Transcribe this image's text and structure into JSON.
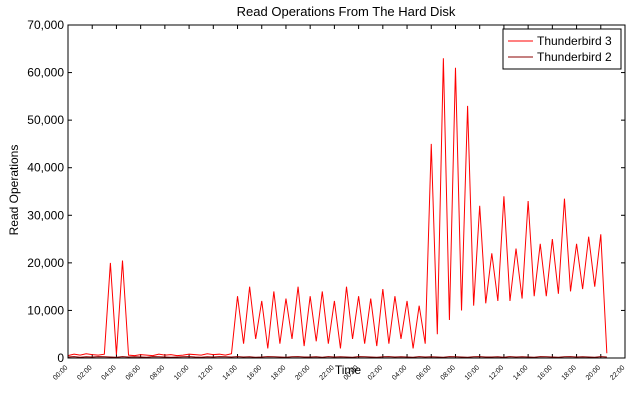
{
  "chart_data": {
    "type": "line",
    "title": "Read Operations From The Hard Disk",
    "x_label": "Time",
    "y_label": "Read Operations",
    "x": [
      0,
      0.5,
      1,
      1.5,
      2,
      2.5,
      3,
      3.5,
      4,
      4.5,
      5,
      5.5,
      6,
      6.5,
      7,
      7.5,
      8,
      8.5,
      9,
      9.5,
      10,
      10.5,
      11,
      11.5,
      12,
      12.5,
      13,
      13.5,
      14,
      14.5,
      15,
      15.5,
      16,
      16.5,
      17,
      17.5,
      18,
      18.5,
      19,
      19.5,
      20,
      20.5,
      21,
      21.5,
      22,
      22.5,
      23,
      23.5,
      24,
      24.5,
      25,
      25.5,
      26,
      26.5,
      27,
      27.5,
      28,
      28.5,
      29,
      29.5,
      30,
      30.5,
      31,
      31.5,
      32,
      32.5,
      33,
      33.5,
      34,
      34.5,
      35,
      35.5,
      36,
      36.5,
      37,
      37.5,
      38,
      38.5,
      39,
      39.5,
      40,
      40.5,
      41,
      41.5,
      42,
      42.5,
      43,
      43.5,
      44,
      44.5
    ],
    "series": [
      {
        "name": "Thunderbird 3",
        "color": "#ff0000",
        "values": [
          500,
          800,
          600,
          900,
          700,
          600,
          800,
          20000,
          700,
          20500,
          600,
          500,
          700,
          600,
          500,
          800,
          600,
          700,
          500,
          600,
          800,
          700,
          600,
          900,
          700,
          800,
          600,
          900,
          13000,
          3000,
          15000,
          4000,
          12000,
          2000,
          14000,
          3000,
          12500,
          4000,
          15000,
          2500,
          13000,
          3500,
          14000,
          3000,
          12000,
          2000,
          15000,
          4000,
          13000,
          3000,
          12500,
          2500,
          14500,
          3000,
          13000,
          4000,
          12000,
          2000,
          11000,
          3000,
          45000,
          5000,
          63000,
          8000,
          61000,
          10000,
          53000,
          11000,
          32000,
          11500,
          22000,
          12000,
          34000,
          12000,
          23000,
          12500,
          33000,
          13000,
          24000,
          13000,
          25000,
          13500,
          33500,
          14000,
          24000,
          14500,
          25500,
          15000,
          26000,
          1000
        ]
      },
      {
        "name": "Thunderbird 2",
        "color": "#8b0000",
        "values": [
          200,
          300,
          150,
          250,
          200,
          300,
          250,
          200,
          150,
          300,
          200,
          250,
          200,
          150,
          300,
          250,
          200,
          150,
          200,
          250,
          300,
          200,
          150,
          250,
          200,
          300,
          250,
          200,
          300,
          200,
          250,
          150,
          200,
          300,
          250,
          200,
          150,
          250,
          300,
          200,
          200,
          250,
          150,
          300,
          200,
          250,
          200,
          150,
          300,
          250,
          200,
          150,
          250,
          300,
          200,
          250,
          200,
          150,
          300,
          200,
          250,
          200,
          150,
          300,
          250,
          200,
          150,
          250,
          300,
          200,
          200,
          250,
          150,
          300,
          200,
          250,
          200,
          150,
          300,
          250,
          200,
          150,
          250,
          300,
          200,
          250,
          200,
          150,
          300,
          200
        ]
      }
    ],
    "xlim": [
      0,
      46
    ],
    "xticks": [
      {
        "value": 0,
        "label": "00:00"
      },
      {
        "value": 2,
        "label": "02:00"
      },
      {
        "value": 4,
        "label": "04:00"
      },
      {
        "value": 6,
        "label": "06:00"
      },
      {
        "value": 8,
        "label": "08:00"
      },
      {
        "value": 10,
        "label": "10:00"
      },
      {
        "value": 12,
        "label": "12:00"
      },
      {
        "value": 14,
        "label": "14:00"
      },
      {
        "value": 16,
        "label": "16:00"
      },
      {
        "value": 18,
        "label": "18:00"
      },
      {
        "value": 20,
        "label": "20:00"
      },
      {
        "value": 22,
        "label": "22:00"
      },
      {
        "value": 24,
        "label": "00:00"
      },
      {
        "value": 26,
        "label": "02:00"
      },
      {
        "value": 28,
        "label": "04:00"
      },
      {
        "value": 30,
        "label": "06:00"
      },
      {
        "value": 32,
        "label": "08:00"
      },
      {
        "value": 34,
        "label": "10:00"
      },
      {
        "value": 36,
        "label": "12:00"
      },
      {
        "value": 38,
        "label": "14:00"
      },
      {
        "value": 40,
        "label": "16:00"
      },
      {
        "value": 42,
        "label": "18:00"
      },
      {
        "value": 44,
        "label": "20:00"
      },
      {
        "value": 46,
        "label": "22:00"
      }
    ],
    "ylim": [
      0,
      70000
    ],
    "yticks": [
      0,
      {
        "value": 10000,
        "label": "10,000"
      },
      {
        "value": 20000,
        "label": "20,000"
      },
      {
        "value": 30000,
        "label": "30,000"
      },
      {
        "value": 40000,
        "label": "40,000"
      },
      {
        "value": 50000,
        "label": "50,000"
      },
      {
        "value": 60000,
        "label": "60,000"
      },
      {
        "value": 70000,
        "label": "70,000"
      }
    ],
    "legend": "upper right"
  }
}
